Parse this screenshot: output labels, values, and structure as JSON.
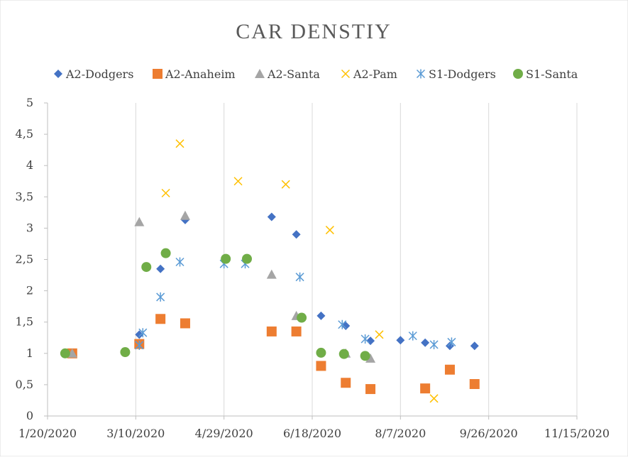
{
  "chart_data": {
    "type": "scatter",
    "title": "CAR DENSTIY",
    "xlabel": "",
    "ylabel": "",
    "x_axis": {
      "type": "date",
      "min": "2020-01-20",
      "max": "2020-11-15",
      "step_days": 50,
      "tick_labels": [
        "1/20/2020",
        "3/10/2020",
        "4/29/2020",
        "6/18/2020",
        "8/7/2020",
        "9/26/2020",
        "11/15/2020"
      ]
    },
    "y_axis": {
      "min": 0,
      "max": 5,
      "step": 0.5,
      "tick_labels": [
        "0",
        "0,5",
        "1",
        "1,5",
        "2",
        "2,5",
        "3",
        "3,5",
        "4",
        "4,5",
        "5"
      ]
    },
    "grid": "vertical",
    "legend_position": "top",
    "series": [
      {
        "name": "A2-Dodgers",
        "marker": "diamond",
        "color": "#4472C4",
        "points": [
          [
            "2020-02-03",
            1.0
          ],
          [
            "2020-03-12",
            1.3
          ],
          [
            "2020-03-24",
            2.35
          ],
          [
            "2020-04-07",
            3.13
          ],
          [
            "2020-05-26",
            3.18
          ],
          [
            "2020-06-09",
            2.9
          ],
          [
            "2020-06-23",
            1.6
          ],
          [
            "2020-07-07",
            1.44
          ],
          [
            "2020-07-21",
            1.2
          ],
          [
            "2020-08-07",
            1.21
          ],
          [
            "2020-08-21",
            1.17
          ],
          [
            "2020-09-04",
            1.12
          ],
          [
            "2020-09-18",
            1.12
          ]
        ]
      },
      {
        "name": "A2-Anaheim",
        "marker": "square",
        "color": "#ED7D31",
        "points": [
          [
            "2020-02-03",
            1.0
          ],
          [
            "2020-03-12",
            1.15
          ],
          [
            "2020-03-24",
            1.55
          ],
          [
            "2020-04-07",
            1.48
          ],
          [
            "2020-05-26",
            1.35
          ],
          [
            "2020-06-09",
            1.35
          ],
          [
            "2020-06-23",
            0.8
          ],
          [
            "2020-07-07",
            0.53
          ],
          [
            "2020-07-21",
            0.43
          ],
          [
            "2020-08-21",
            0.44
          ],
          [
            "2020-09-04",
            0.74
          ],
          [
            "2020-09-18",
            0.51
          ]
        ]
      },
      {
        "name": "A2-Santa",
        "marker": "triangle",
        "color": "#A5A5A5",
        "points": [
          [
            "2020-02-03",
            1.0
          ],
          [
            "2020-03-12",
            3.1
          ],
          [
            "2020-04-07",
            3.2
          ],
          [
            "2020-05-26",
            2.26
          ],
          [
            "2020-06-09",
            1.6
          ],
          [
            "2020-07-07",
            1.0
          ],
          [
            "2020-07-21",
            0.92
          ]
        ]
      },
      {
        "name": "A2-Pam",
        "marker": "x",
        "color": "#FFC000",
        "points": [
          [
            "2020-03-27",
            3.56
          ],
          [
            "2020-04-04",
            4.35
          ],
          [
            "2020-05-07",
            3.75
          ],
          [
            "2020-06-03",
            3.7
          ],
          [
            "2020-06-28",
            2.97
          ],
          [
            "2020-07-26",
            1.3
          ],
          [
            "2020-08-26",
            0.28
          ]
        ]
      },
      {
        "name": "S1-Dodgers",
        "marker": "asterisk",
        "color": "#5B9BD5",
        "points": [
          [
            "2020-03-12",
            1.13
          ],
          [
            "2020-03-14",
            1.33
          ],
          [
            "2020-03-24",
            1.9
          ],
          [
            "2020-04-04",
            2.46
          ],
          [
            "2020-04-29",
            2.43
          ],
          [
            "2020-05-11",
            2.43
          ],
          [
            "2020-06-11",
            2.22
          ],
          [
            "2020-07-05",
            1.46
          ],
          [
            "2020-07-18",
            1.23
          ],
          [
            "2020-08-14",
            1.28
          ],
          [
            "2020-08-26",
            1.14
          ],
          [
            "2020-09-05",
            1.18
          ]
        ]
      },
      {
        "name": "S1-Santa",
        "marker": "circle",
        "color": "#70AD47",
        "points": [
          [
            "2020-01-30",
            1.0
          ],
          [
            "2020-03-04",
            1.02
          ],
          [
            "2020-03-16",
            2.38
          ],
          [
            "2020-03-27",
            2.6
          ],
          [
            "2020-04-30",
            2.51
          ],
          [
            "2020-05-12",
            2.51
          ],
          [
            "2020-06-12",
            1.57
          ],
          [
            "2020-06-23",
            1.01
          ],
          [
            "2020-07-06",
            0.99
          ],
          [
            "2020-07-18",
            0.96
          ]
        ]
      }
    ]
  }
}
